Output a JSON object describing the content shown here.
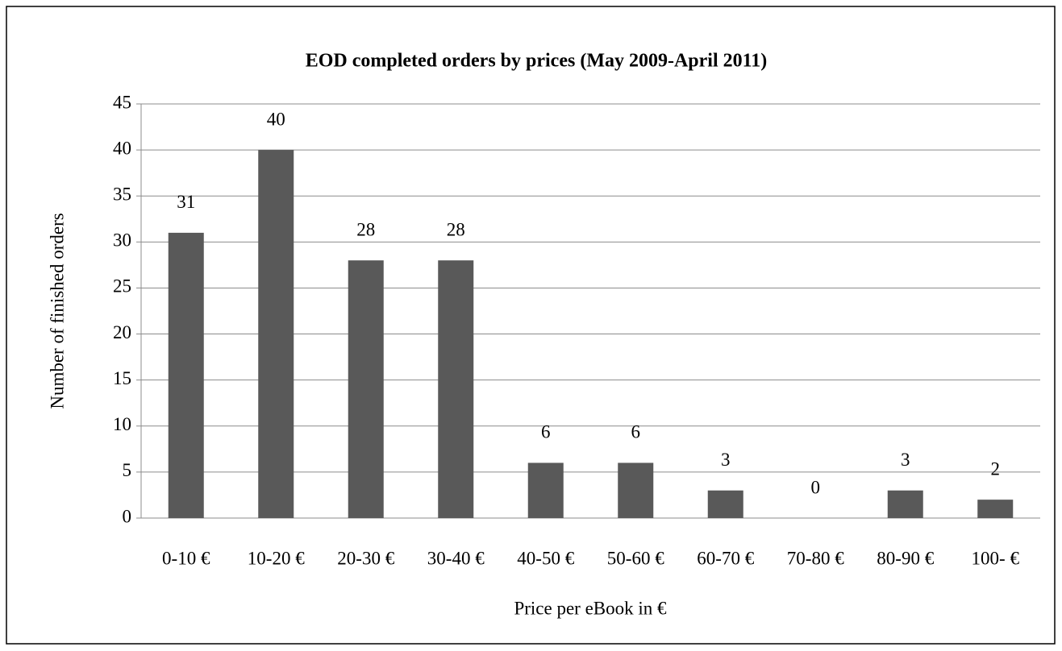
{
  "chart_data": {
    "type": "bar",
    "title": "EOD completed orders by prices (May 2009-April 2011)",
    "x_label": "Price per eBook in €",
    "y_label": "Number of finished orders",
    "categories": [
      "0-10 €",
      "10-20 €",
      "20-30 €",
      "30-40 €",
      "40-50 €",
      "50-60 €",
      "60-70 €",
      "70-80 €",
      "80-90 €",
      "100- €"
    ],
    "values": [
      31,
      40,
      28,
      28,
      6,
      6,
      3,
      0,
      3,
      2
    ],
    "color": "#595959",
    "ylim": [
      0,
      45
    ],
    "yticks": [
      0,
      5,
      10,
      15,
      20,
      25,
      30,
      35,
      40,
      45
    ],
    "grid": true,
    "data_labels": true
  }
}
